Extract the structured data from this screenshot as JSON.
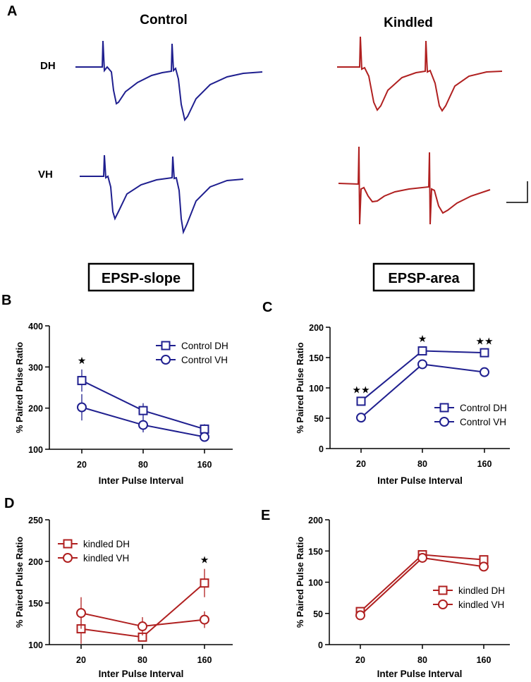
{
  "figure": {
    "panel_a": {
      "letter": "A",
      "col_control": "Control",
      "col_kindled": "Kindled",
      "row_dh": "DH",
      "row_vh": "VH",
      "label_left": "EPSP-slope",
      "label_right": "EPSP-area"
    },
    "colors": {
      "control": "#1f1f8f",
      "kindled": "#b02020"
    }
  },
  "chart_data": [
    {
      "panel": "B",
      "type": "line",
      "categories": [
        "20",
        "80",
        "160"
      ],
      "xlabel": "Inter Pulse Interval",
      "ylabel": "% Paired Pulse Ratio",
      "ylim": [
        100,
        400
      ],
      "yticks": [
        100,
        200,
        300,
        400
      ],
      "series": [
        {
          "name": "Control DH",
          "marker": "square",
          "values": [
            267,
            194,
            149
          ],
          "err": [
            27,
            18,
            12
          ]
        },
        {
          "name": "Control VH",
          "marker": "circle",
          "values": [
            202,
            159,
            130
          ],
          "err": [
            32,
            18,
            10
          ]
        }
      ],
      "annotations": [
        "★",
        "",
        ""
      ],
      "legend": "top-right"
    },
    {
      "panel": "C",
      "type": "line",
      "categories": [
        "20",
        "80",
        "160"
      ],
      "xlabel": "Inter Pulse Interval",
      "ylabel": "% Paired Pulse Ratio",
      "ylim": [
        0,
        200
      ],
      "yticks": [
        0,
        50,
        100,
        150,
        200
      ],
      "series": [
        {
          "name": "Control DH",
          "marker": "square",
          "values": [
            78,
            161,
            158
          ],
          "err": [
            4,
            5,
            4
          ]
        },
        {
          "name": "Control VH",
          "marker": "circle",
          "values": [
            51,
            139,
            126
          ],
          "err": [
            3,
            4,
            3
          ]
        }
      ],
      "annotations": [
        "★★",
        "★",
        "★★"
      ],
      "legend": "bottom-right"
    },
    {
      "panel": "D",
      "type": "line",
      "categories": [
        "20",
        "80",
        "160"
      ],
      "xlabel": "Inter Pulse Interval",
      "ylabel": "% Paired Pulse Ratio",
      "ylim": [
        100,
        250
      ],
      "yticks": [
        100,
        150,
        200,
        250
      ],
      "series": [
        {
          "name": "kindled DH",
          "marker": "square",
          "values": [
            119,
            109,
            174
          ],
          "err": [
            18,
            5,
            17
          ]
        },
        {
          "name": "kindled VH",
          "marker": "circle",
          "values": [
            138,
            122,
            130
          ],
          "err": [
            19,
            11,
            10
          ]
        }
      ],
      "annotations": [
        "",
        "",
        "★"
      ],
      "legend": "top-left"
    },
    {
      "panel": "E",
      "type": "line",
      "categories": [
        "20",
        "80",
        "160"
      ],
      "xlabel": "Inter Pulse Interval",
      "ylabel": "% Paired Pulse Ratio",
      "ylim": [
        0,
        200
      ],
      "yticks": [
        0,
        50,
        100,
        150,
        200
      ],
      "series": [
        {
          "name": "kindled DH",
          "marker": "square",
          "values": [
            53,
            144,
            136
          ],
          "err": [
            3,
            4,
            4
          ]
        },
        {
          "name": "kindled VH",
          "marker": "circle",
          "values": [
            47,
            139,
            125
          ],
          "err": [
            3,
            3,
            3
          ]
        }
      ],
      "annotations": [
        "",
        "",
        ""
      ],
      "legend": "bottom-right"
    }
  ]
}
